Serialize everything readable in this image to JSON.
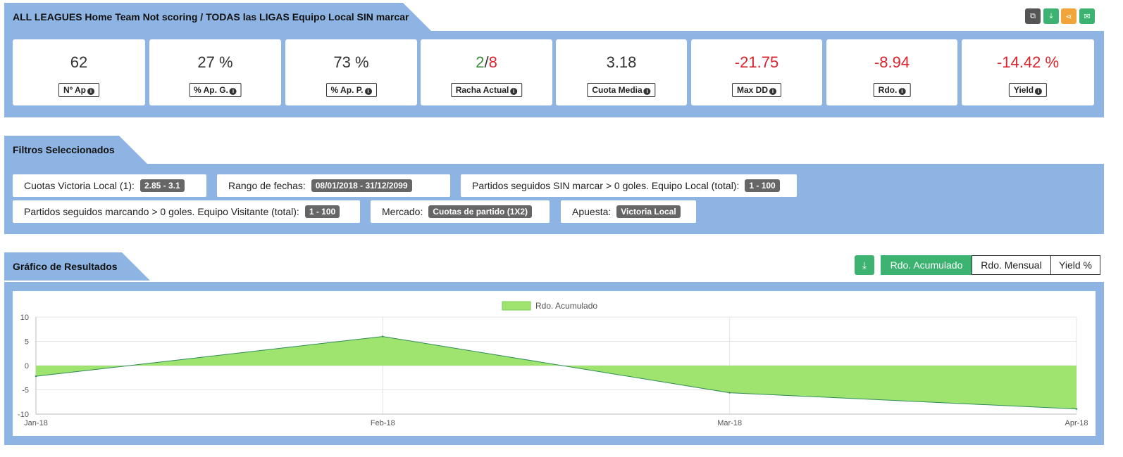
{
  "header": {
    "title": "ALL LEAGUES Home Team Not scoring / TODAS las LIGAS Equipo Local SIN marcar"
  },
  "toolbar": {
    "copy_icon": "copy-icon",
    "download_icon": "download-icon",
    "share_icon": "share-icon",
    "email_icon": "email-icon"
  },
  "stats": [
    {
      "value": "62",
      "label": "Nº Ap"
    },
    {
      "value": "27 %",
      "label": "% Ap. G."
    },
    {
      "value": "73 %",
      "label": "% Ap. P."
    },
    {
      "value_win": "2",
      "value_sep": "/",
      "value_loss": "8",
      "label": "Racha Actual"
    },
    {
      "value": "3.18",
      "label": "Cuota Media"
    },
    {
      "value": "-21.75",
      "label": "Max DD"
    },
    {
      "value": "-8.94",
      "label": "Rdo."
    },
    {
      "value": "-14.42 %",
      "label": "Yield"
    }
  ],
  "filters_section": {
    "title": "Filtros Seleccionados",
    "items": [
      {
        "label": "Cuotas Victoria Local (1):",
        "value": "2.85 - 3.1"
      },
      {
        "label": "Rango de fechas:",
        "value": "08/01/2018 - 31/12/2099"
      },
      {
        "label": "Partidos seguidos SIN marcar > 0 goles. Equipo Local (total):",
        "value": "1 - 100"
      },
      {
        "label": "Partidos seguidos marcando > 0 goles. Equipo Visitante (total):",
        "value": "1 - 100"
      },
      {
        "label": "Mercado:",
        "value": "Cuotas de partido (1X2)"
      },
      {
        "label": "Apuesta:",
        "value": "Victoria Local"
      }
    ]
  },
  "results_section": {
    "title": "Gráfico de Resultados",
    "buttons": [
      "Rdo. Acumulado",
      "Rdo. Mensual",
      "Yield %"
    ],
    "active_button": "Rdo. Acumulado"
  },
  "chart_data": {
    "type": "area",
    "title": "",
    "xlabel": "",
    "ylabel": "",
    "x": [
      "Jan-18",
      "Feb-18",
      "Mar-18",
      "Apr-18"
    ],
    "series": [
      {
        "name": "Rdo. Acumulado",
        "values": [
          -2.2,
          6.0,
          -5.6,
          -8.94
        ]
      }
    ],
    "ylim": [
      -10,
      10
    ],
    "yticks": [
      10,
      5,
      0,
      -5,
      -10
    ],
    "grid": true,
    "legend": "top",
    "fill_color": "#9ee46f",
    "line_color": "#2e8b57"
  }
}
